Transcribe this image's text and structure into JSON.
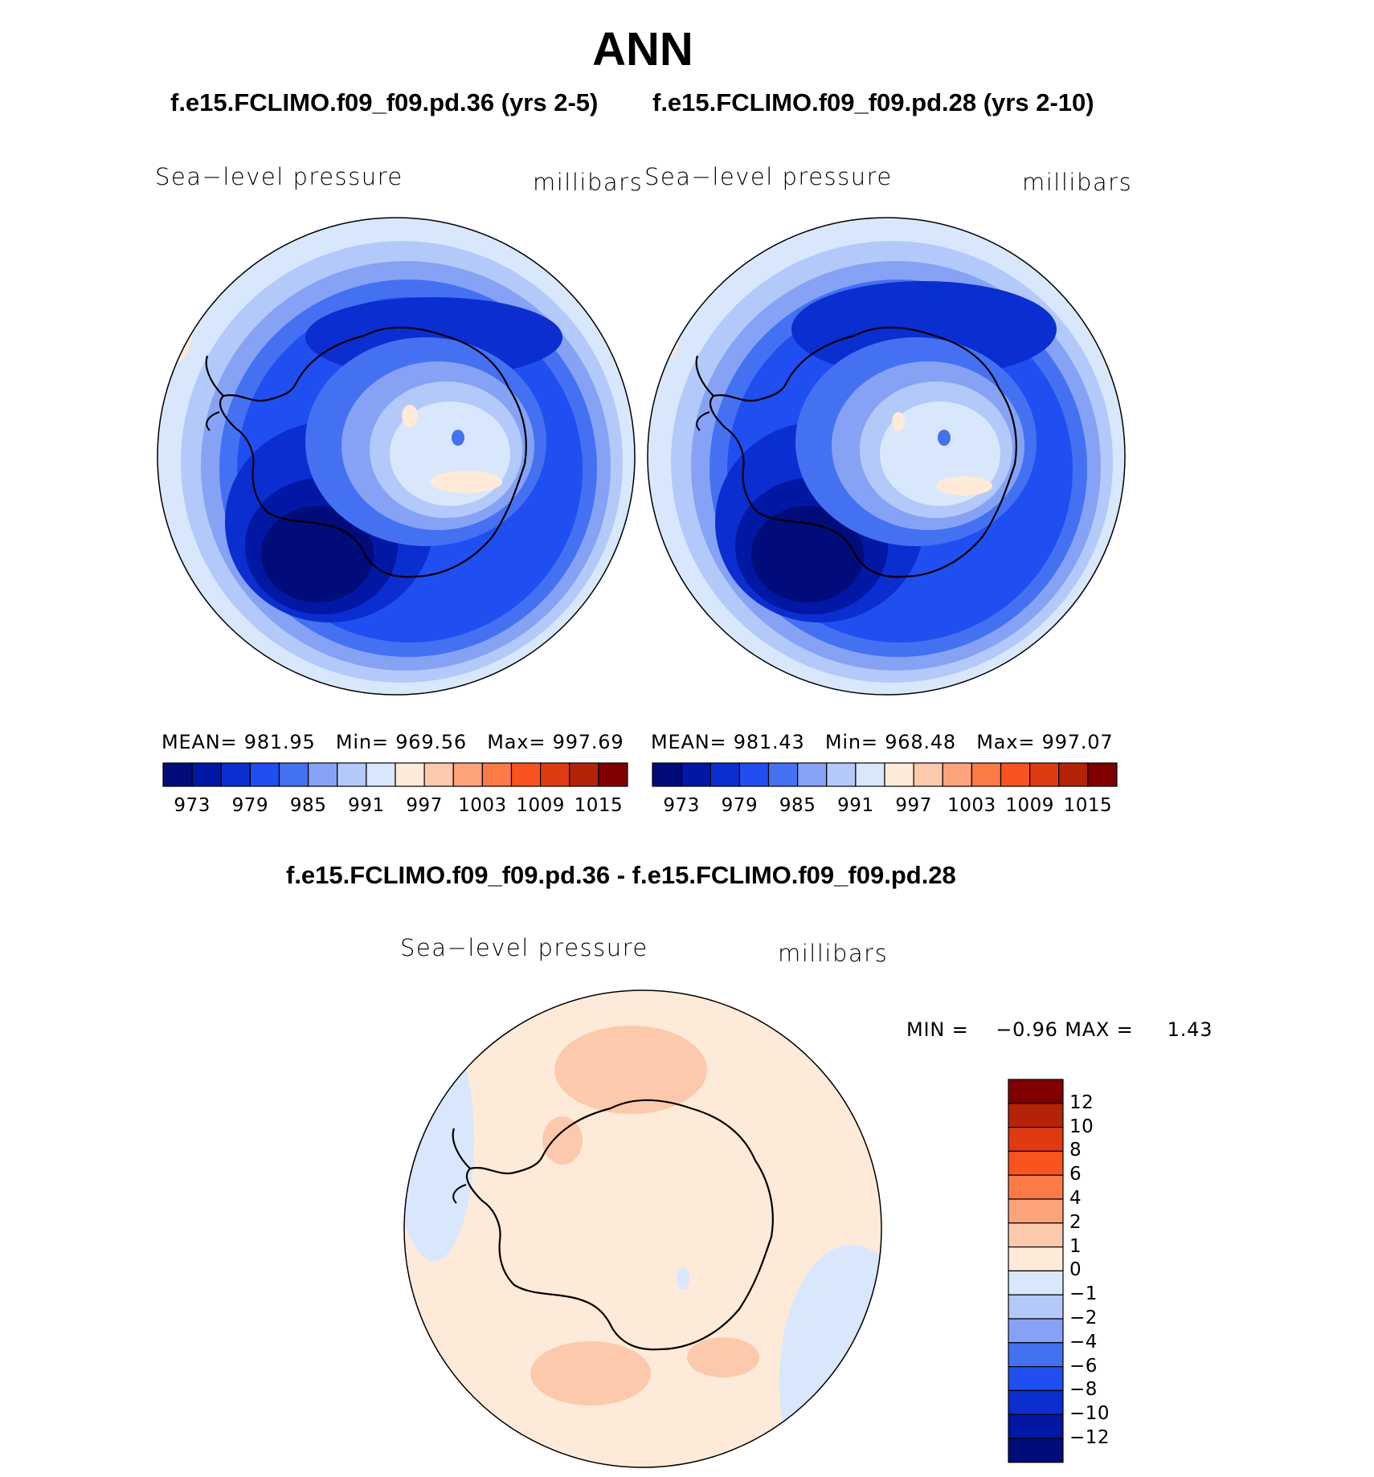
{
  "title": "ANN",
  "panels": [
    {
      "case_title": "f.e15.FCLIMO.f09_f09.pd.36 (yrs 2-5)",
      "variable": "Sea−level pressure",
      "units": "millibars",
      "stats": {
        "mean_label": "MEAN=",
        "mean": "981.95",
        "min_label": "Min=",
        "min": "969.56",
        "max_label": "Max=",
        "max": "997.69"
      }
    },
    {
      "case_title": "f.e15.FCLIMO.f09_f09.pd.28 (yrs 2-10)",
      "variable": "Sea−level pressure",
      "units": "millibars",
      "stats": {
        "mean_label": "MEAN=",
        "mean": "981.43",
        "min_label": "Min=",
        "min": "968.48",
        "max_label": "Max=",
        "max": "997.07"
      }
    }
  ],
  "abs_colorbar": {
    "colors": [
      "#000c7a",
      "#0018a4",
      "#0a2ecf",
      "#1f4ff0",
      "#4471f2",
      "#86a2f5",
      "#b3c9f9",
      "#d8e7fc",
      "#feead8",
      "#fdc9ad",
      "#fca37a",
      "#fb7a46",
      "#f9531f",
      "#e03a10",
      "#b42308",
      "#800000"
    ],
    "tick_labels": [
      "973",
      "979",
      "985",
      "991",
      "997",
      "1003",
      "1009",
      "1015"
    ]
  },
  "diff_panel": {
    "title": "f.e15.FCLIMO.f09_f09.pd.36 - f.e15.FCLIMO.f09_f09.pd.28",
    "variable": "Sea−level pressure",
    "units": "millibars",
    "stats": {
      "min_label": "MIN =",
      "min": "−0.96",
      "max_label": "MAX =",
      "max": "1.43"
    }
  },
  "diff_colorbar": {
    "colors": [
      "#800000",
      "#b42308",
      "#e03a10",
      "#f9531f",
      "#fb7a46",
      "#fca37a",
      "#fdc9ad",
      "#feead8",
      "#d8e7fc",
      "#b3c9f9",
      "#86a2f5",
      "#4471f2",
      "#1f4ff0",
      "#0a2ecf",
      "#0018a4",
      "#000c7a"
    ],
    "tick_labels": [
      "12",
      "10",
      "8",
      "6",
      "4",
      "2",
      "1",
      "0",
      "−1",
      "−2",
      "−4",
      "−6",
      "−8",
      "−10",
      "−12"
    ]
  },
  "map_colors": {
    "c1": "#000c7a",
    "c2": "#0018a4",
    "c3": "#0a2ecf",
    "c4": "#1f4ff0",
    "c5": "#4471f2",
    "c6": "#86a2f5",
    "c7": "#b3c9f9",
    "c8": "#d8e7fc",
    "w1": "#feead8",
    "w2": "#fdc9ad"
  }
}
